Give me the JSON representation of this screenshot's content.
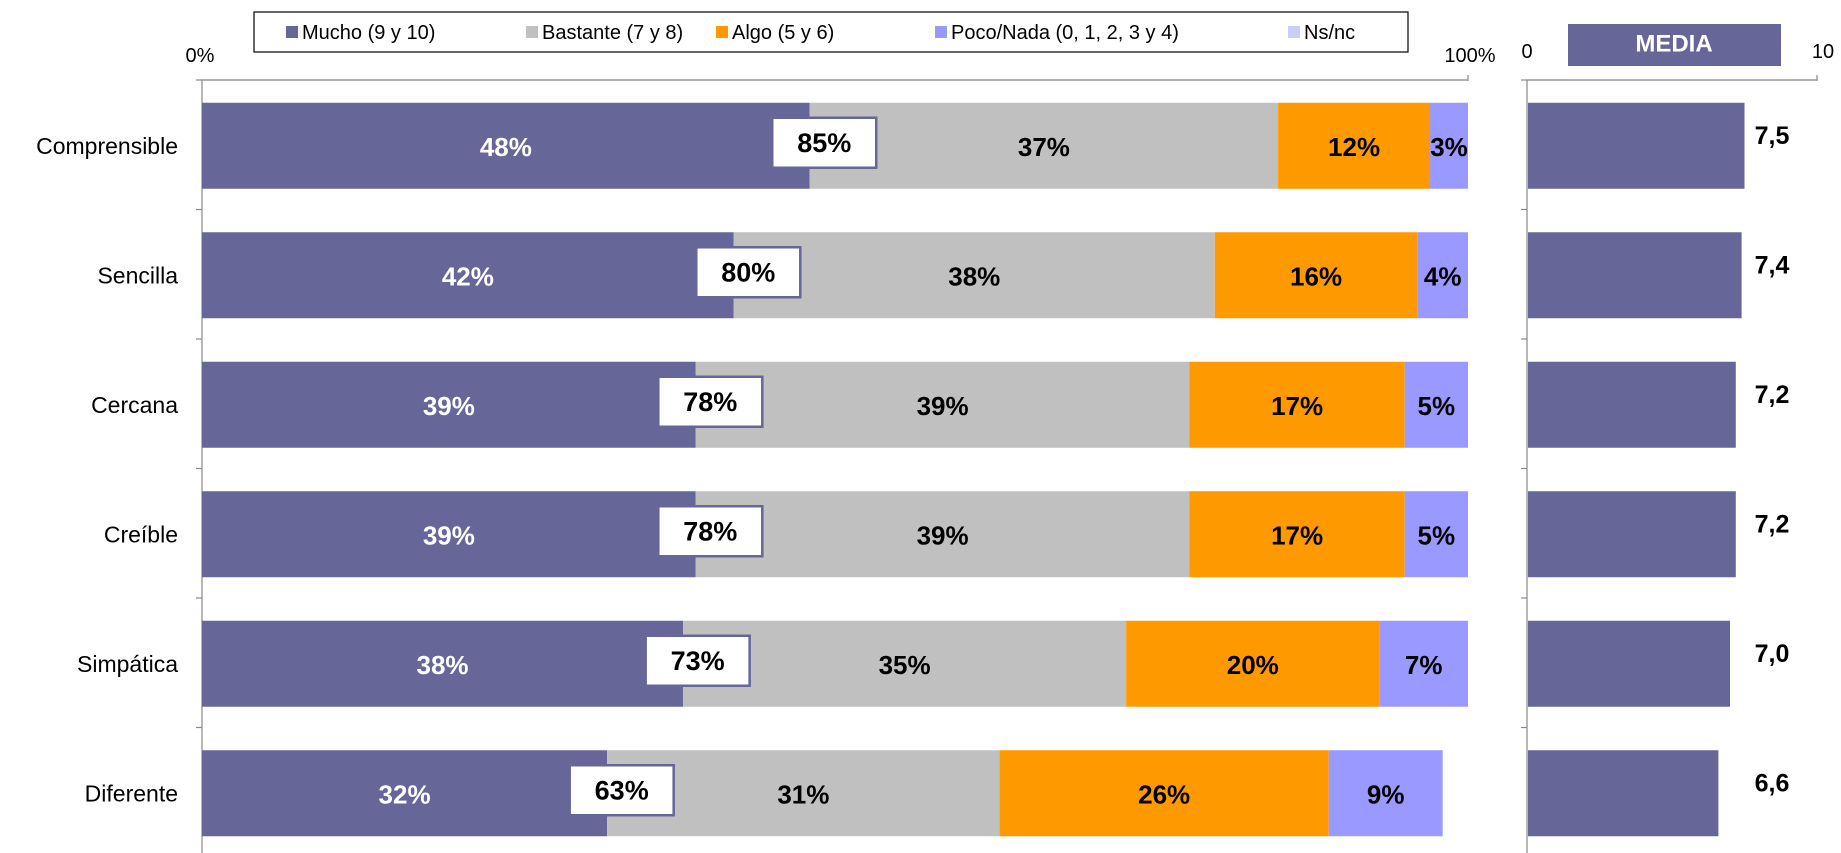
{
  "chart_data": [
    {
      "type": "bar",
      "orientation": "horizontal",
      "stacked": true,
      "percent_scale": true,
      "axis": {
        "min_label": "0%",
        "max_label": "100%",
        "xlim": [
          0,
          100
        ]
      },
      "legend": {
        "placement": "top",
        "entries": [
          {
            "label": "Mucho (9 y 10)",
            "color": "#666699"
          },
          {
            "label": "Bastante (7 y 8)",
            "color": "#C0C0C0"
          },
          {
            "label": "Algo (5 y 6)",
            "color": "#FF9900"
          },
          {
            "label": "Poco/Nada (0, 1, 2, 3 y 4)",
            "color": "#9999FF"
          },
          {
            "label": "Ns/nc",
            "color": "#CCCCFF"
          }
        ]
      },
      "categories": [
        "Comprensible",
        "Sencilla",
        "Cercana",
        "Creíble",
        "Simpática",
        "Diferente"
      ],
      "series": [
        {
          "name": "Mucho (9 y 10)",
          "color": "#666699",
          "values": [
            48,
            42,
            39,
            39,
            38,
            32
          ],
          "labels": [
            "48%",
            "42%",
            "39%",
            "39%",
            "38%",
            "32%"
          ],
          "label_color": "#ffffff"
        },
        {
          "name": "Bastante (7 y 8)",
          "color": "#C0C0C0",
          "values": [
            37,
            38,
            39,
            39,
            35,
            31
          ],
          "labels": [
            "37%",
            "38%",
            "39%",
            "39%",
            "35%",
            "31%"
          ],
          "label_color": "#000000"
        },
        {
          "name": "Algo (5 y 6)",
          "color": "#FF9900",
          "values": [
            12,
            16,
            17,
            17,
            20,
            26
          ],
          "labels": [
            "12%",
            "16%",
            "17%",
            "17%",
            "20%",
            "26%"
          ],
          "label_color": "#000000"
        },
        {
          "name": "Poco/Nada (0, 1, 2, 3 y 4)",
          "color": "#9999FF",
          "values": [
            3,
            4,
            5,
            5,
            7,
            9
          ],
          "labels": [
            "3%",
            "4%",
            "5%",
            "5%",
            "7%",
            "9%"
          ],
          "label_color": "#000000"
        },
        {
          "name": "Ns/nc",
          "color": "#CCCCFF",
          "values": [
            0,
            0,
            0,
            0,
            0,
            0
          ],
          "labels": [
            "",
            "",
            "",
            "",
            "",
            ""
          ],
          "label_color": "#000000"
        }
      ],
      "totals": {
        "values": [
          85,
          80,
          78,
          78,
          73,
          63
        ],
        "labels": [
          "85%",
          "80%",
          "78%",
          "78%",
          "73%",
          "63%"
        ]
      }
    },
    {
      "type": "bar",
      "orientation": "horizontal",
      "title": "MEDIA",
      "axis": {
        "min_label": "0",
        "max_label": "10",
        "xlim": [
          0,
          10
        ]
      },
      "categories": [
        "Comprensible",
        "Sencilla",
        "Cercana",
        "Creíble",
        "Simpática",
        "Diferente"
      ],
      "color": "#666699",
      "values": [
        7.5,
        7.4,
        7.2,
        7.2,
        7.0,
        6.6
      ],
      "labels": [
        "7,5",
        "7,4",
        "7,2",
        "7,2",
        "7,0",
        "6,6"
      ]
    }
  ]
}
